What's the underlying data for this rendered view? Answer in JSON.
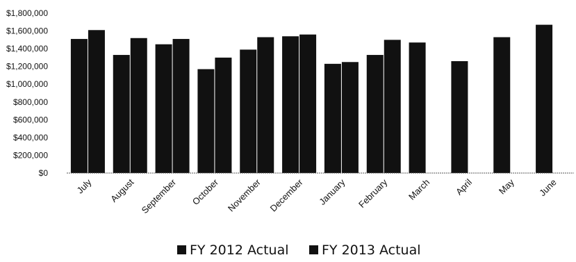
{
  "chart_data": {
    "type": "bar",
    "title": "",
    "xlabel": "",
    "ylabel": "",
    "categories": [
      "July",
      "August",
      "September",
      "October",
      "November",
      "December",
      "January",
      "February",
      "March",
      "April",
      "May",
      "June"
    ],
    "series": [
      {
        "name": "FY 2012 Actual",
        "color": "#111111",
        "values": [
          1510000,
          1330000,
          1450000,
          1170000,
          1390000,
          1540000,
          1230000,
          1330000,
          1470000,
          1260000,
          1530000,
          1670000
        ]
      },
      {
        "name": "FY 2013 Actual",
        "color": "#111111",
        "values": [
          1610000,
          1520000,
          1510000,
          1300000,
          1530000,
          1560000,
          1250000,
          1500000,
          null,
          null,
          null,
          null
        ]
      }
    ],
    "ylim": [
      0,
      1800000
    ],
    "yticks": [
      0,
      200000,
      400000,
      600000,
      800000,
      1000000,
      1200000,
      1400000,
      1600000,
      1800000
    ],
    "ytick_labels": [
      "$0",
      "$200,000",
      "$400,000",
      "$600,000",
      "$800,000",
      "$1,000,000",
      "$1,200,000",
      "$1,400,000",
      "$1,600,000",
      "$1,800,000"
    ],
    "grid": false,
    "legend_position": "bottom"
  }
}
